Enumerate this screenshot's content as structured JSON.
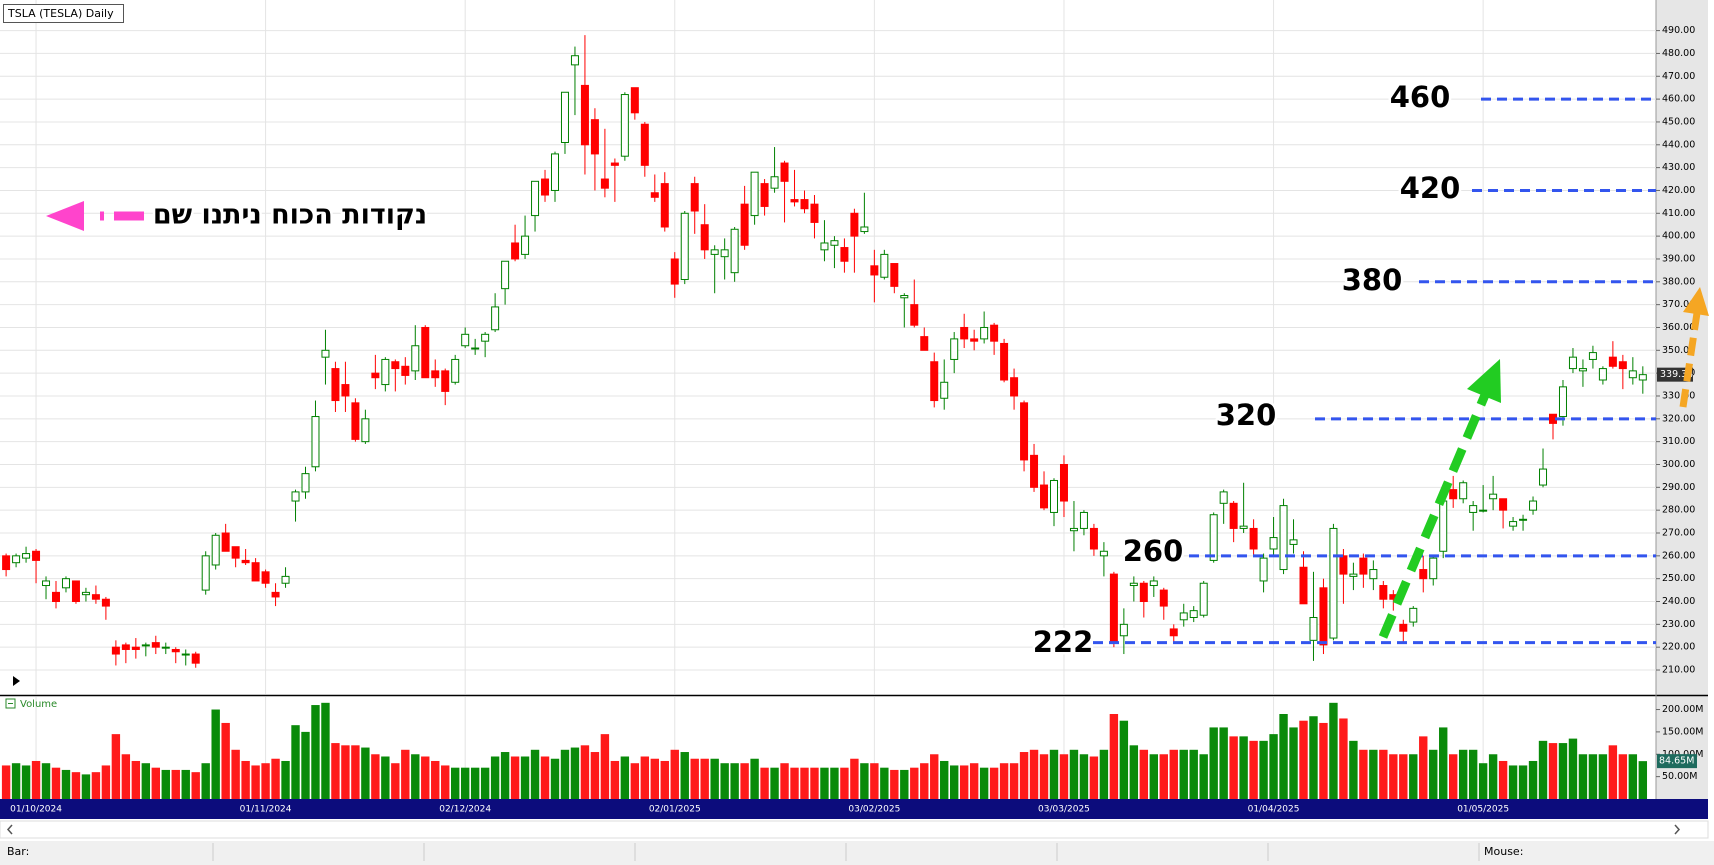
{
  "chart_data": {
    "type": "candlestick",
    "title": "TSLA (TESLA) Daily",
    "categories": [
      null,
      null,
      null,
      "01/10/2024",
      null,
      null,
      null,
      null,
      null,
      null,
      null,
      null,
      null,
      null,
      null,
      null,
      null,
      null,
      null,
      null,
      null,
      null,
      null,
      null,
      null,
      null,
      "01/11/2024",
      null,
      null,
      null,
      null,
      null,
      null,
      null,
      null,
      null,
      null,
      null,
      null,
      null,
      null,
      null,
      null,
      null,
      null,
      null,
      "02/12/2024",
      null,
      null,
      null,
      null,
      null,
      null,
      null,
      null,
      null,
      null,
      null,
      null,
      null,
      null,
      null,
      null,
      null,
      null,
      null,
      null,
      "02/01/2025",
      null,
      null,
      null,
      null,
      null,
      null,
      null,
      null,
      null,
      null,
      null,
      null,
      null,
      null,
      null,
      null,
      null,
      null,
      null,
      "03/02/2025",
      null,
      null,
      null,
      null,
      null,
      null,
      null,
      null,
      null,
      null,
      null,
      null,
      null,
      null,
      null,
      null,
      null,
      null,
      "03/03/2025",
      null,
      null,
      null,
      null,
      null,
      null,
      null,
      null,
      null,
      null,
      null,
      null,
      null,
      null,
      null,
      null,
      null,
      null,
      null,
      null,
      "01/04/2025",
      null,
      null,
      null,
      null,
      null,
      null,
      null,
      null,
      null,
      null,
      null,
      null,
      null,
      null,
      null,
      null,
      null,
      null,
      null,
      null,
      "01/05/2025",
      null,
      null,
      null,
      null,
      null,
      null,
      null,
      null,
      null,
      null,
      null,
      null,
      null,
      null,
      null,
      null
    ],
    "ohlc": [
      [
        260,
        261,
        251,
        254
      ],
      [
        257,
        261,
        255,
        260
      ],
      [
        259,
        264,
        257,
        261
      ],
      [
        262,
        263,
        248,
        258
      ],
      [
        247,
        251,
        241,
        249
      ],
      [
        244,
        249,
        237,
        240
      ],
      [
        246,
        251,
        244,
        250
      ],
      [
        249,
        249,
        239,
        240
      ],
      [
        243,
        246,
        240,
        244
      ],
      [
        243,
        247,
        239,
        241
      ],
      [
        241,
        242,
        232,
        238
      ],
      [
        220,
        223,
        212,
        217
      ],
      [
        221,
        222,
        213,
        219
      ],
      [
        220,
        224,
        215,
        219
      ],
      [
        221,
        222,
        216,
        221
      ],
      [
        222,
        225,
        217,
        220
      ],
      [
        220,
        222,
        217,
        220
      ],
      [
        219,
        220,
        213,
        218
      ],
      [
        217,
        219,
        212,
        217
      ],
      [
        217,
        218,
        211,
        213
      ],
      [
        245,
        262,
        243,
        260
      ],
      [
        256,
        270,
        254,
        269
      ],
      [
        270,
        274,
        262,
        262
      ],
      [
        264,
        264,
        255,
        259
      ],
      [
        258,
        263,
        256,
        257
      ],
      [
        257,
        259,
        249,
        249
      ],
      [
        253,
        254,
        246,
        248
      ],
      [
        244,
        248,
        238,
        242
      ],
      [
        248,
        255,
        246,
        251
      ],
      [
        284,
        289,
        275,
        288
      ],
      [
        288,
        299,
        285,
        296
      ],
      [
        299,
        328,
        297,
        321
      ],
      [
        347,
        359,
        335,
        350
      ],
      [
        342,
        345,
        323,
        328
      ],
      [
        335,
        345,
        323,
        330
      ],
      [
        327,
        329,
        310,
        311
      ],
      [
        310,
        324,
        309,
        320
      ],
      [
        340,
        348,
        333,
        338
      ],
      [
        335,
        347,
        332,
        346
      ],
      [
        345,
        346,
        332,
        342
      ],
      [
        343,
        347,
        335,
        339
      ],
      [
        341,
        361,
        337,
        352
      ],
      [
        360,
        361,
        338,
        338
      ],
      [
        341,
        346,
        334,
        338
      ],
      [
        341,
        342,
        326,
        332
      ],
      [
        336,
        348,
        335,
        346
      ],
      [
        352,
        360,
        351,
        357
      ],
      [
        351,
        355,
        348,
        351
      ],
      [
        354,
        358,
        347,
        357
      ],
      [
        359,
        375,
        358,
        369
      ],
      [
        377,
        389,
        370,
        389
      ],
      [
        397,
        405,
        389,
        390
      ],
      [
        392,
        409,
        390,
        400
      ],
      [
        409,
        424,
        402,
        424
      ],
      [
        425,
        429,
        415,
        418
      ],
      [
        420,
        437,
        415,
        436
      ],
      [
        441,
        463,
        436,
        463
      ],
      [
        475,
        483,
        453,
        479
      ],
      [
        466,
        488,
        427,
        440
      ],
      [
        451,
        456,
        420,
        436
      ],
      [
        425,
        447,
        417,
        421
      ],
      [
        432,
        434,
        415,
        431
      ],
      [
        435,
        463,
        433,
        462
      ],
      [
        465,
        465,
        451,
        454
      ],
      [
        449,
        450,
        426,
        431
      ],
      [
        419,
        427,
        415,
        417
      ],
      [
        423,
        428,
        402,
        404
      ],
      [
        390,
        393,
        373,
        379
      ],
      [
        381,
        411,
        379,
        410
      ],
      [
        423,
        426,
        401,
        411
      ],
      [
        405,
        414,
        390,
        394
      ],
      [
        392,
        396,
        375,
        394
      ],
      [
        391,
        399,
        381,
        394
      ],
      [
        384,
        404,
        380,
        403
      ],
      [
        414,
        422,
        394,
        396
      ],
      [
        409,
        428,
        405,
        428
      ],
      [
        423,
        425,
        409,
        413
      ],
      [
        421,
        439,
        419,
        426
      ],
      [
        432,
        433,
        406,
        424
      ],
      [
        416,
        429,
        413,
        415
      ],
      [
        416,
        420,
        410,
        412
      ],
      [
        414,
        418,
        399,
        406
      ],
      [
        394,
        407,
        389,
        397
      ],
      [
        396,
        400,
        386,
        398
      ],
      [
        395,
        399,
        384,
        389
      ],
      [
        410,
        412,
        384,
        400
      ],
      [
        402,
        419,
        401,
        404
      ],
      [
        387,
        394,
        371,
        383
      ],
      [
        382,
        394,
        381,
        392
      ],
      [
        388,
        388,
        375,
        378
      ],
      [
        373,
        375,
        360,
        374
      ],
      [
        370,
        381,
        360,
        361
      ],
      [
        356,
        360,
        350,
        350
      ],
      [
        345,
        349,
        325,
        328
      ],
      [
        329,
        346,
        324,
        336
      ],
      [
        346,
        358,
        340,
        355
      ],
      [
        360,
        366,
        351,
        355
      ],
      [
        355,
        359,
        350,
        354
      ],
      [
        355,
        367,
        353,
        360
      ],
      [
        361,
        362,
        348,
        354
      ],
      [
        353,
        355,
        336,
        337
      ],
      [
        338,
        342,
        324,
        330
      ],
      [
        327,
        328,
        297,
        302
      ],
      [
        304,
        309,
        288,
        290
      ],
      [
        291,
        297,
        280,
        281
      ],
      [
        279,
        294,
        273,
        293
      ],
      [
        300,
        304,
        277,
        284
      ],
      [
        271,
        284,
        262,
        272
      ],
      [
        272,
        280,
        269,
        279
      ],
      [
        272,
        274,
        260,
        263
      ],
      [
        260,
        266,
        251,
        262
      ],
      [
        252,
        253,
        220,
        222
      ],
      [
        225,
        237,
        217,
        230
      ],
      [
        247,
        251,
        240,
        248
      ],
      [
        248,
        249,
        233,
        240
      ],
      [
        247,
        251,
        242,
        249
      ],
      [
        245,
        246,
        232,
        238
      ],
      [
        228,
        230,
        222,
        225
      ],
      [
        232,
        239,
        229,
        235
      ],
      [
        233,
        238,
        231,
        236
      ],
      [
        234,
        249,
        233,
        248
      ],
      [
        258,
        279,
        257,
        278
      ],
      [
        283,
        289,
        274,
        288
      ],
      [
        283,
        284,
        266,
        272
      ],
      [
        272,
        292,
        270,
        273
      ],
      [
        272,
        276,
        260,
        263
      ],
      [
        249,
        261,
        244,
        259
      ],
      [
        263,
        277,
        260,
        268
      ],
      [
        254,
        285,
        252,
        282
      ],
      [
        265,
        276,
        261,
        267
      ],
      [
        255,
        262,
        239,
        239
      ],
      [
        223,
        253,
        214,
        233
      ],
      [
        246,
        250,
        217,
        221
      ],
      [
        224,
        274,
        223,
        272
      ],
      [
        260,
        263,
        239,
        252
      ],
      [
        251,
        257,
        245,
        252
      ],
      [
        259,
        261,
        246,
        252
      ],
      [
        250,
        258,
        245,
        254
      ],
      [
        247,
        249,
        237,
        241
      ],
      [
        243,
        245,
        236,
        241
      ],
      [
        230,
        232,
        222,
        227
      ],
      [
        231,
        238,
        229,
        237
      ],
      [
        254,
        260,
        244,
        250
      ],
      [
        250,
        260,
        247,
        259
      ],
      [
        262,
        286,
        259,
        284
      ],
      [
        289,
        295,
        281,
        285
      ],
      [
        285,
        293,
        283,
        292
      ],
      [
        279,
        284,
        271,
        282
      ],
      [
        280,
        291,
        279,
        280
      ],
      [
        285,
        295,
        280,
        287
      ],
      [
        285,
        285,
        272,
        280
      ],
      [
        273,
        277,
        271,
        275
      ],
      [
        276,
        278,
        271,
        276
      ],
      [
        280,
        286,
        278,
        284
      ],
      [
        291,
        307,
        290,
        298
      ],
      [
        322,
        322,
        311,
        318
      ],
      [
        321,
        337,
        317,
        334
      ],
      [
        342,
        351,
        340,
        347
      ],
      [
        341,
        346,
        334,
        342
      ],
      [
        346,
        352,
        342,
        349
      ],
      [
        337,
        343,
        335,
        342
      ],
      [
        347,
        354,
        342,
        343
      ],
      [
        345,
        348,
        333,
        342
      ],
      [
        338,
        347,
        335,
        341
      ],
      [
        337,
        343,
        331,
        339.34
      ]
    ],
    "ylim": [
      199.5,
      503.4
    ],
    "yticks": [
      {
        "value": 210,
        "label": "210.00"
      },
      {
        "value": 220,
        "label": "220.00"
      },
      {
        "value": 230,
        "label": "230.00"
      },
      {
        "value": 240,
        "label": "240.00"
      },
      {
        "value": 250,
        "label": "250.00"
      },
      {
        "value": 260,
        "label": "260.00"
      },
      {
        "value": 270,
        "label": "270.00"
      },
      {
        "value": 280,
        "label": "280.00"
      },
      {
        "value": 290,
        "label": "290.00"
      },
      {
        "value": 300,
        "label": "300.00"
      },
      {
        "value": 310,
        "label": "310.00"
      },
      {
        "value": 320,
        "label": "320.00"
      },
      {
        "value": 330,
        "label": "330.00"
      },
      {
        "value": 340,
        "label": "340.00"
      },
      {
        "value": 350,
        "label": "350.00"
      },
      {
        "value": 360,
        "label": "360.00"
      },
      {
        "value": 370,
        "label": "370.00"
      },
      {
        "value": 380,
        "label": "380.00"
      },
      {
        "value": 390,
        "label": "390.00"
      },
      {
        "value": 400,
        "label": "400.00"
      },
      {
        "value": 410,
        "label": "410.00"
      },
      {
        "value": 420,
        "label": "420.00"
      },
      {
        "value": 430,
        "label": "430.00"
      },
      {
        "value": 440,
        "label": "440.00"
      },
      {
        "value": 450,
        "label": "450.00"
      },
      {
        "value": 460,
        "label": "460.00"
      },
      {
        "value": 470,
        "label": "470.00"
      },
      {
        "value": 480,
        "label": "480.00"
      },
      {
        "value": 490,
        "label": "490.00"
      }
    ],
    "grid": true,
    "up_color": "#008000",
    "down_color": "#ff0000",
    "volume": {
      "name": "Volume",
      "values": [
        75,
        80,
        75,
        85,
        80,
        70,
        65,
        60,
        55,
        60,
        75,
        145,
        100,
        85,
        80,
        70,
        65,
        65,
        65,
        60,
        80,
        200,
        170,
        110,
        85,
        75,
        80,
        90,
        85,
        165,
        150,
        210,
        215,
        125,
        120,
        120,
        115,
        100,
        95,
        80,
        110,
        100,
        95,
        85,
        75,
        70,
        70,
        70,
        70,
        95,
        105,
        95,
        95,
        110,
        95,
        90,
        110,
        115,
        120,
        105,
        145,
        85,
        95,
        80,
        95,
        90,
        85,
        110,
        105,
        90,
        90,
        90,
        80,
        80,
        80,
        90,
        70,
        70,
        80,
        70,
        70,
        70,
        70,
        70,
        70,
        90,
        80,
        80,
        70,
        65,
        65,
        70,
        80,
        100,
        85,
        75,
        75,
        80,
        70,
        70,
        80,
        80,
        105,
        110,
        100,
        110,
        100,
        110,
        100,
        95,
        110,
        190,
        175,
        120,
        110,
        100,
        100,
        110,
        110,
        110,
        100,
        160,
        160,
        140,
        140,
        130,
        130,
        145,
        190,
        160,
        175,
        185,
        170,
        215,
        180,
        130,
        110,
        110,
        110,
        100,
        100,
        100,
        140,
        110,
        160,
        100,
        110,
        110,
        80,
        100,
        85,
        75,
        75,
        85,
        130,
        125,
        125,
        135,
        100,
        100,
        100,
        120,
        100,
        100,
        84.65
      ],
      "last_label": "84.65M",
      "ylim": [
        0,
        228
      ],
      "yticks": [
        {
          "value": 50,
          "label": "50.00M"
        },
        {
          "value": 100,
          "label": "100.00M"
        },
        {
          "value": 150,
          "label": "150.00M"
        },
        {
          "value": 200,
          "label": "200.00M"
        }
      ]
    },
    "annotation": "נקודות הכוח ניתנו שם",
    "levels": [
      460,
      420,
      380,
      320,
      260,
      222
    ],
    "level_color": "#3355ee"
  },
  "status_bar": {
    "left": "Bar:",
    "right": "Mouse:"
  }
}
